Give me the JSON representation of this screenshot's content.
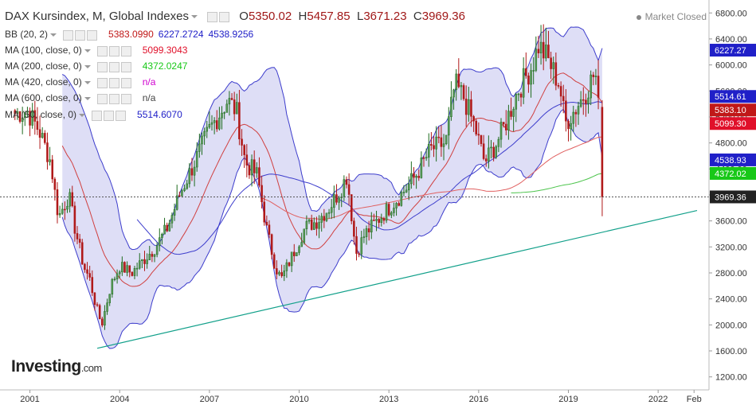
{
  "header": {
    "title": "DAX Kursindex, M, Global Indexes",
    "open_label": "O",
    "open": "5350.02",
    "high_label": "H",
    "high": "5457.85",
    "low_label": "L",
    "low": "3671.23",
    "close_label": "C",
    "close": "3969.36"
  },
  "market_status": "Market Closed",
  "indicators": [
    {
      "label": "BB (20, 2)",
      "values": [
        "5383.0990",
        "6227.2724",
        "4538.9256"
      ],
      "colors": [
        "#c01818",
        "#2020c8",
        "#2020c8"
      ]
    },
    {
      "label": "MA (100, close, 0)",
      "values": [
        "5099.3043"
      ],
      "colors": [
        "#e0102a"
      ]
    },
    {
      "label": "MA (200, close, 0)",
      "values": [
        "4372.0247"
      ],
      "colors": [
        "#18c818"
      ]
    },
    {
      "label": "MA (420, close, 0)",
      "values": [
        "n/a"
      ],
      "colors": [
        "#d000d0"
      ]
    },
    {
      "label": "MA (600, close, 0)",
      "values": [
        "n/a"
      ],
      "colors": [
        "#444444"
      ]
    },
    {
      "label": "MA (50, close, 0)",
      "values": [
        "5514.6070"
      ],
      "colors": [
        "#2020c8"
      ]
    }
  ],
  "logo": {
    "main": "Investing",
    "suffix": ".com"
  },
  "colors": {
    "up": "#1e6b1e",
    "down": "#b01818",
    "bb_band": "#3d3dcc",
    "bb_fill": "#d8d8f4",
    "trendline": "#12a08a",
    "ma50": "#3d3dcc",
    "ma100": "#e06060",
    "ma200": "#4cc44c"
  },
  "chart_data": {
    "type": "candlestick",
    "timeframe": "monthly",
    "x_ticks": [
      "2001",
      "2004",
      "2007",
      "2010",
      "2013",
      "2016",
      "2019",
      "2022",
      "Feb"
    ],
    "y_ticks": [
      1200,
      1600,
      2000,
      2400,
      2800,
      3200,
      3600,
      4000,
      4400,
      4800,
      5200,
      5600,
      6000,
      6400,
      6800
    ],
    "ylim": [
      1000,
      6950
    ],
    "last_candle": {
      "open": 5350.02,
      "high": 5457.85,
      "low": 3671.23,
      "close": 3969.36
    },
    "price_labels": [
      {
        "value": 6227.27,
        "color": "#2020c8"
      },
      {
        "value": 5514.61,
        "color": "#2020c8"
      },
      {
        "value": 5383.1,
        "color": "#c01818"
      },
      {
        "value": 5099.3,
        "color": "#e0102a"
      },
      {
        "value": 4538.93,
        "color": "#2020c8"
      },
      {
        "value": 4372.02,
        "color": "#18c818"
      },
      {
        "value": 3969.36,
        "color": "#222222"
      }
    ],
    "series_path": [
      [
        2000.5,
        5250
      ],
      [
        2000.9,
        5300
      ],
      [
        2001.3,
        5000
      ],
      [
        2001.7,
        4500
      ],
      [
        2001.9,
        3800
      ],
      [
        2002.0,
        3700
      ],
      [
        2002.3,
        4000
      ],
      [
        2002.5,
        3500
      ],
      [
        2002.8,
        2900
      ],
      [
        2003.0,
        2700
      ],
      [
        2003.2,
        2300
      ],
      [
        2003.4,
        2000
      ],
      [
        2003.7,
        2600
      ],
      [
        2004.0,
        2900
      ],
      [
        2004.4,
        2800
      ],
      [
        2004.8,
        3000
      ],
      [
        2005.2,
        3200
      ],
      [
        2005.6,
        3500
      ],
      [
        2006.0,
        4000
      ],
      [
        2006.4,
        4400
      ],
      [
        2006.8,
        4800
      ],
      [
        2007.0,
        5000
      ],
      [
        2007.4,
        5300
      ],
      [
        2007.6,
        5450
      ],
      [
        2007.9,
        5300
      ],
      [
        2008.2,
        4500
      ],
      [
        2008.6,
        4300
      ],
      [
        2008.9,
        3500
      ],
      [
        2009.2,
        2900
      ],
      [
        2009.4,
        2700
      ],
      [
        2009.8,
        3100
      ],
      [
        2010.2,
        3500
      ],
      [
        2010.6,
        3600
      ],
      [
        2011.0,
        3800
      ],
      [
        2011.4,
        4100
      ],
      [
        2011.6,
        4300
      ],
      [
        2011.9,
        3100
      ],
      [
        2012.2,
        3400
      ],
      [
        2012.6,
        3600
      ],
      [
        2013.0,
        3800
      ],
      [
        2013.4,
        4000
      ],
      [
        2013.9,
        4300
      ],
      [
        2014.4,
        4700
      ],
      [
        2014.9,
        4800
      ],
      [
        2015.2,
        5700
      ],
      [
        2015.5,
        5500
      ],
      [
        2015.9,
        5000
      ],
      [
        2016.2,
        4500
      ],
      [
        2016.6,
        4800
      ],
      [
        2016.9,
        5100
      ],
      [
        2017.3,
        5600
      ],
      [
        2017.8,
        6000
      ],
      [
        2018.0,
        6300
      ],
      [
        2018.3,
        6100
      ],
      [
        2018.7,
        5700
      ],
      [
        2018.9,
        5100
      ],
      [
        2019.2,
        5300
      ],
      [
        2019.6,
        5600
      ],
      [
        2019.9,
        5900
      ],
      [
        2020.0,
        5350
      ],
      [
        2020.1,
        3969
      ]
    ]
  }
}
